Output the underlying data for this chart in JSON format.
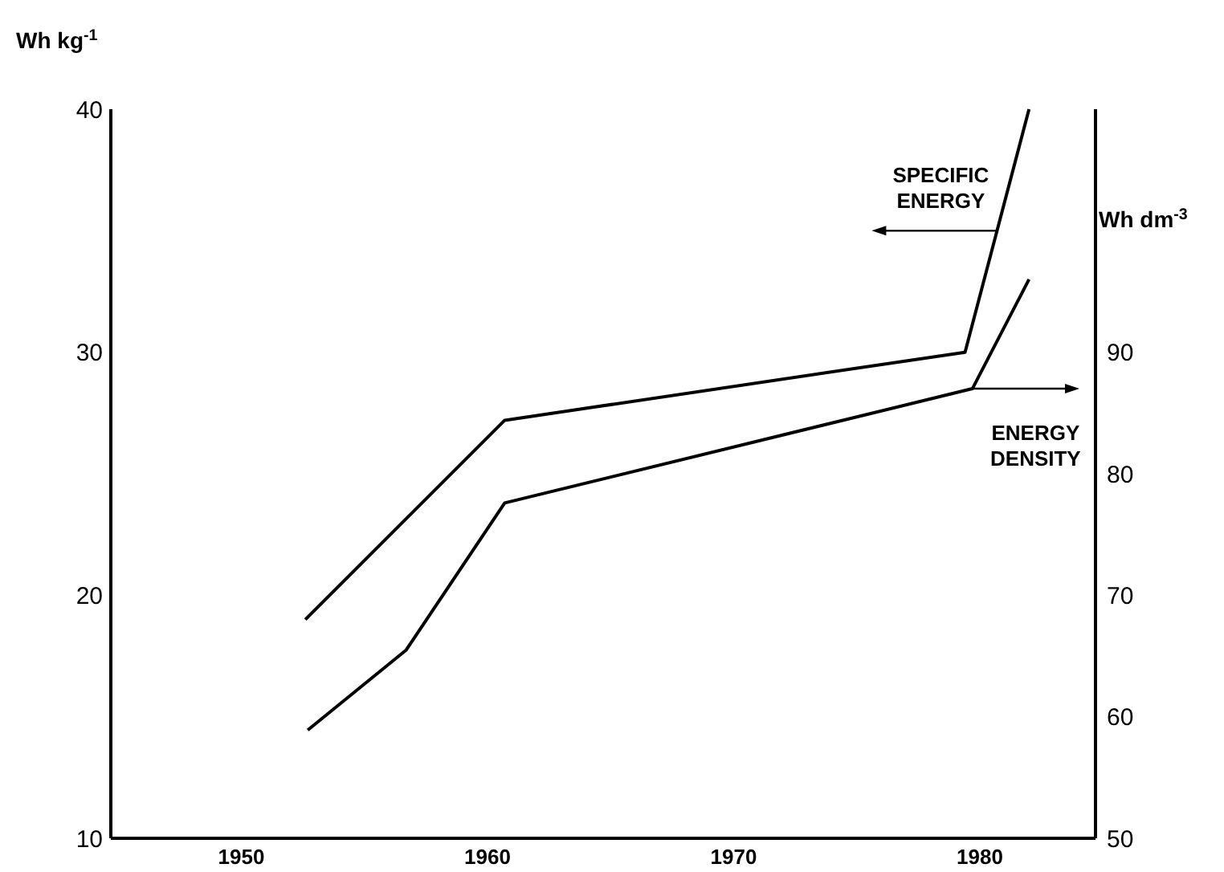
{
  "chart_data": {
    "type": "line",
    "ylabel": "Wh kg$^{-1}$",
    "y2label": "Wh dm$^{-3}$",
    "xlim": [
      1944.7,
      1984.7
    ],
    "xticks": [
      1950,
      1960,
      1970,
      1980
    ],
    "ylim": [
      10,
      40
    ],
    "yticks": [
      10,
      20,
      30,
      40
    ],
    "y2lim": [
      50,
      110
    ],
    "y2ticks": [
      50,
      60,
      70,
      80,
      90
    ],
    "grid": false,
    "marker": "none",
    "line_style": "solid",
    "series": [
      {
        "name": "SPECIFIC ENERGY",
        "color": "#000000",
        "x": [
          1952.6,
          1960.7,
          1979.4,
          1982
        ],
        "values": [
          19,
          27.2,
          30,
          40
        ]
      },
      {
        "name": "ENERGY DENSITY",
        "color": "#000000",
        "axis": "y2",
        "x": [
          1952.7,
          1956.7,
          1960.7,
          1979.7,
          1982
        ],
        "values": [
          58.9,
          65.5,
          77.6,
          87,
          96
        ]
      }
    ]
  }
}
